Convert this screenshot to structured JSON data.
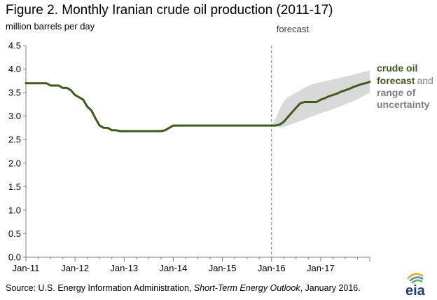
{
  "figure": {
    "title": "Figure 2. Monthly Iranian crude oil production (2011-17)",
    "units": "million barrels per day",
    "forecast_label": "forecast",
    "legend": {
      "line1": "crude oil",
      "line2_green": "forecast",
      "line2_gray": "and",
      "line3": "range of",
      "line4": "uncertainty"
    },
    "source": {
      "prefix": "Source:  U.S. Energy Information  Administration, ",
      "italic": "Short-Term Energy Outlook",
      "suffix": ", January 2016."
    },
    "logo_text": "eia"
  },
  "colors": {
    "line": "#3d5a1e",
    "band": "#d9d9d9",
    "axis": "#808080",
    "forecast_divider": "#808080"
  },
  "chart_data": {
    "type": "line",
    "title": "Figure 2. Monthly Iranian crude oil production (2011-17)",
    "ylabel": "million barrels per day",
    "x_unit": "months since Jan-2011",
    "xlim": [
      0,
      84
    ],
    "ylim": [
      0,
      4.5
    ],
    "yticks": [
      "0.0",
      "0.5",
      "1.0",
      "1.5",
      "2.0",
      "2.5",
      "3.0",
      "3.5",
      "4.0",
      "4.5"
    ],
    "ytick_values": [
      0,
      0.5,
      1,
      1.5,
      2,
      2.5,
      3,
      3.5,
      4,
      4.5
    ],
    "xticks": [
      "Jan-11",
      "Jan-12",
      "Jan-13",
      "Jan-14",
      "Jan-15",
      "Jan-16",
      "Jan-17"
    ],
    "xtick_values": [
      0,
      12,
      24,
      36,
      48,
      60,
      72
    ],
    "forecast_start": 60,
    "series": [
      {
        "name": "crude oil production",
        "x": [
          0,
          5,
          6,
          8,
          9,
          10,
          11,
          12,
          13,
          14,
          15,
          16,
          17,
          18,
          19,
          20,
          21,
          22,
          23,
          24,
          25,
          33,
          34,
          35,
          36,
          60,
          61,
          62,
          63,
          64,
          65,
          66,
          67,
          68,
          69,
          70,
          71,
          72,
          73,
          74,
          75,
          76,
          77,
          78,
          79,
          80,
          81,
          82,
          83,
          84
        ],
        "y": [
          3.7,
          3.7,
          3.65,
          3.65,
          3.6,
          3.6,
          3.55,
          3.45,
          3.4,
          3.35,
          3.2,
          3.12,
          2.95,
          2.8,
          2.75,
          2.75,
          2.7,
          2.7,
          2.68,
          2.68,
          2.68,
          2.68,
          2.7,
          2.75,
          2.8,
          2.8,
          2.8,
          2.82,
          2.88,
          2.98,
          3.08,
          3.18,
          3.27,
          3.3,
          3.3,
          3.3,
          3.3,
          3.35,
          3.38,
          3.42,
          3.45,
          3.48,
          3.52,
          3.55,
          3.58,
          3.62,
          3.65,
          3.68,
          3.7,
          3.73
        ]
      }
    ],
    "uncertainty_band": {
      "x": [
        60,
        61,
        62,
        63,
        64,
        66,
        68,
        70,
        72,
        74,
        76,
        78,
        80,
        82,
        84
      ],
      "lower": [
        2.8,
        2.78,
        2.76,
        2.77,
        2.8,
        2.86,
        2.93,
        3.0,
        3.06,
        3.12,
        3.18,
        3.25,
        3.32,
        3.4,
        3.5
      ],
      "upper": [
        2.8,
        2.95,
        3.15,
        3.32,
        3.4,
        3.5,
        3.6,
        3.68,
        3.72,
        3.76,
        3.8,
        3.84,
        3.88,
        3.93,
        3.97
      ]
    }
  }
}
